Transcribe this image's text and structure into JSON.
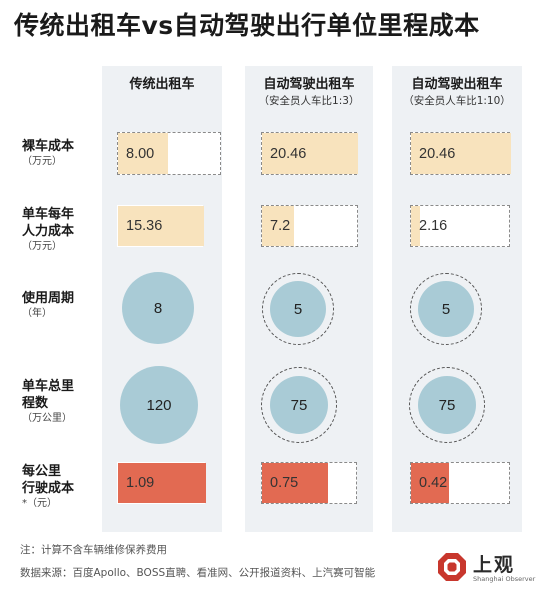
{
  "title": "传统出租车vs自动驾驶出行单位里程成本",
  "columns": [
    {
      "name": "传统出租车",
      "sub": ""
    },
    {
      "name": "自动驾驶出租车",
      "sub": "（安全员人车比1:3）"
    },
    {
      "name": "自动驾驶出租车",
      "sub": "（安全员人车比1:10）"
    }
  ],
  "rows": [
    {
      "label": "裸车成本",
      "label2": "",
      "unit": "（万元）"
    },
    {
      "label": "单车每年",
      "label2": "人力成本",
      "unit": "（万元）"
    },
    {
      "label": "使用周期",
      "label2": "",
      "unit": "（年）"
    },
    {
      "label": "单车总里",
      "label2": "程数",
      "unit": "（万公里）"
    },
    {
      "label": "每公里",
      "label2": "行驶成本",
      "unit": "*（元）"
    }
  ],
  "values": {
    "vehicle_cost": [
      "8.00",
      "20.46",
      "20.46"
    ],
    "labor_cost": [
      "15.36",
      "7.2",
      "2.16"
    ],
    "service_life": [
      "8",
      "5",
      "5"
    ],
    "total_mileage": [
      "120",
      "75",
      "75"
    ],
    "cost_per_km": [
      "1.09",
      "0.75",
      "0.42"
    ]
  },
  "chart_data": {
    "type": "table",
    "title": "传统出租车vs自动驾驶出行单位里程成本",
    "categories": [
      "传统出租车",
      "自动驾驶出租车（安全员人车比1:3）",
      "自动驾驶出租车（安全员人车比1:10）"
    ],
    "series": [
      {
        "name": "裸车成本（万元）",
        "values": [
          8.0,
          20.46,
          20.46
        ]
      },
      {
        "name": "单车每年人力成本（万元）",
        "values": [
          15.36,
          7.2,
          2.16
        ]
      },
      {
        "name": "使用周期（年）",
        "values": [
          8,
          5,
          5
        ]
      },
      {
        "name": "单车总里程数（万公里）",
        "values": [
          120,
          75,
          75
        ]
      },
      {
        "name": "每公里行驶成本（元）",
        "values": [
          1.09,
          0.75,
          0.42
        ]
      }
    ]
  },
  "notes": {
    "footnote": "注：计算不含车辆维修保养费用",
    "source": "数据来源：百度Apollo、BOSS直聘、看准网、公开报道资料、上汽赛可智能"
  },
  "logo": {
    "text": "上观",
    "sub": "Shanghai Observer"
  },
  "colors": {
    "yellow": "#f8e3bd",
    "red": "#e26a52",
    "circle": "#a9cbd6",
    "column_bg": "#eef1f4"
  }
}
